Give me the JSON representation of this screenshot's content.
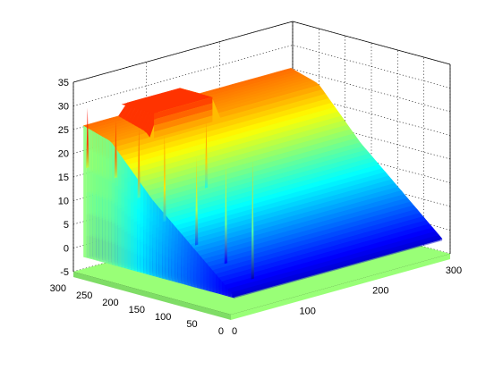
{
  "chart_data": {
    "type": "surface",
    "title": "",
    "xlabel": "",
    "ylabel": "",
    "zlabel": "",
    "xlim": [
      0,
      300
    ],
    "ylim": [
      0,
      300
    ],
    "zlim": [
      -5,
      35
    ],
    "x_ticks": [
      "0",
      "100",
      "200",
      "300"
    ],
    "y_ticks": [
      "0",
      "50",
      "100",
      "150",
      "200",
      "250",
      "300"
    ],
    "z_ticks": [
      "-5",
      "0",
      "5",
      "10",
      "15",
      "20",
      "25",
      "30",
      "35"
    ],
    "colormap": "jet",
    "floor_color": "#99ff77",
    "grid": true,
    "surface_profile_along_y": [
      {
        "y": 0,
        "z": -2
      },
      {
        "y": 40,
        "z": 2
      },
      {
        "y": 80,
        "z": 6
      },
      {
        "y": 120,
        "z": 10
      },
      {
        "y": 160,
        "z": 14
      },
      {
        "y": 200,
        "z": 19
      },
      {
        "y": 240,
        "z": 24
      },
      {
        "y": 270,
        "z": 25
      },
      {
        "y": 300,
        "z": 26
      }
    ],
    "plateau": {
      "x_range": [
        60,
        140
      ],
      "y_range": [
        230,
        300
      ],
      "z": 28
    },
    "spikes": [
      {
        "x": 5,
        "y": 280,
        "z": 30
      },
      {
        "x": 15,
        "y": 240,
        "z": 28
      },
      {
        "x": 25,
        "y": 210,
        "z": 27
      },
      {
        "x": 35,
        "y": 175,
        "z": 26
      },
      {
        "x": 50,
        "y": 135,
        "z": 22
      },
      {
        "x": 65,
        "y": 100,
        "z": 21
      },
      {
        "x": 80,
        "y": 70,
        "z": 22
      },
      {
        "x": 110,
        "y": 200,
        "z": 25
      }
    ]
  }
}
